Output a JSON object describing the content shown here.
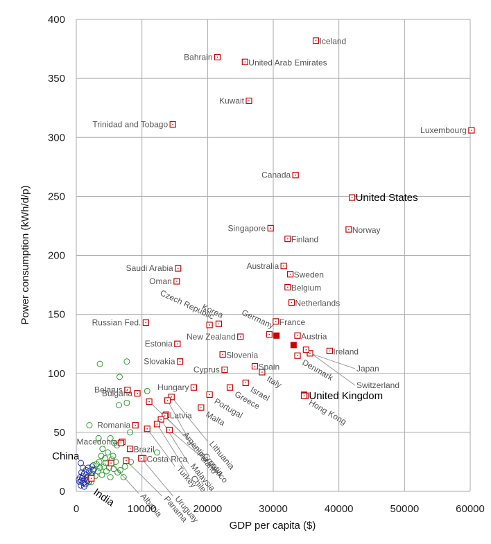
{
  "chart_data": {
    "type": "scatter",
    "xlabel": "GDP per capita ($)",
    "ylabel": "Power consumption (kWh/d/p)",
    "xlim": [
      0,
      60000
    ],
    "ylim": [
      0,
      400
    ],
    "xticks": [
      0,
      10000,
      20000,
      30000,
      40000,
      50000,
      60000
    ],
    "yticks": [
      0,
      50,
      100,
      150,
      200,
      250,
      300,
      350,
      400
    ],
    "grid": true,
    "colors": {
      "highlight": "#cc0000",
      "green": "#2a9a2a",
      "blue": "#2233aa",
      "gray_label": "#555555",
      "grid": "#aaaaaa"
    },
    "labeled_points": [
      {
        "name": "Iceland",
        "x": 36500,
        "y": 382,
        "label_side": "right"
      },
      {
        "name": "Bahrain",
        "x": 21500,
        "y": 368,
        "label_side": "left"
      },
      {
        "name": "United Arab Emirates",
        "x": 25700,
        "y": 364,
        "label_side": "right"
      },
      {
        "name": "Kuwait",
        "x": 26300,
        "y": 331,
        "label_side": "left"
      },
      {
        "name": "Trinidad and Tobago",
        "x": 14700,
        "y": 311,
        "label_side": "left"
      },
      {
        "name": "Luxembourg",
        "x": 60200,
        "y": 306,
        "label_side": "left"
      },
      {
        "name": "Canada",
        "x": 33400,
        "y": 268,
        "label_side": "left"
      },
      {
        "name": "United States",
        "x": 42000,
        "y": 249,
        "label_side": "right",
        "emphasis": true
      },
      {
        "name": "Singapore",
        "x": 29600,
        "y": 223,
        "label_side": "left"
      },
      {
        "name": "Norway",
        "x": 41500,
        "y": 222,
        "label_side": "right"
      },
      {
        "name": "Finland",
        "x": 32200,
        "y": 214,
        "label_side": "right"
      },
      {
        "name": "Saudi Arabia",
        "x": 15500,
        "y": 189,
        "label_side": "left"
      },
      {
        "name": "Australia",
        "x": 31600,
        "y": 191,
        "label_side": "left"
      },
      {
        "name": "Sweden",
        "x": 32600,
        "y": 184,
        "label_side": "right"
      },
      {
        "name": "Oman",
        "x": 15300,
        "y": 178,
        "label_side": "left"
      },
      {
        "name": "Belgium",
        "x": 32200,
        "y": 173,
        "label_side": "right"
      },
      {
        "name": "Netherlands",
        "x": 32800,
        "y": 160,
        "label_side": "right"
      },
      {
        "name": "Russian Fed.",
        "x": 10600,
        "y": 143,
        "label_side": "left"
      },
      {
        "name": "France",
        "x": 30400,
        "y": 144,
        "label_side": "right"
      },
      {
        "name": "Austria",
        "x": 33700,
        "y": 132,
        "label_side": "right"
      },
      {
        "name": "New Zealand",
        "x": 25000,
        "y": 131,
        "label_side": "left"
      },
      {
        "name": "Estonia",
        "x": 15400,
        "y": 125,
        "label_side": "left"
      },
      {
        "name": "Ireland",
        "x": 38600,
        "y": 119,
        "label_side": "right"
      },
      {
        "name": "Slovenia",
        "x": 22300,
        "y": 116,
        "label_side": "right"
      },
      {
        "name": "Slovakia",
        "x": 15800,
        "y": 110,
        "label_side": "left"
      },
      {
        "name": "Spain",
        "x": 27200,
        "y": 106,
        "label_side": "right"
      },
      {
        "name": "Cyprus",
        "x": 22600,
        "y": 103,
        "label_side": "left"
      },
      {
        "name": "Belarus",
        "x": 7800,
        "y": 86,
        "label_side": "left"
      },
      {
        "name": "Hungary",
        "x": 17900,
        "y": 88,
        "label_side": "left"
      },
      {
        "name": "Bulgaria",
        "x": 9300,
        "y": 83,
        "label_side": "left"
      },
      {
        "name": "Latvia",
        "x": 13700,
        "y": 65,
        "label_side": "right"
      },
      {
        "name": "Romania",
        "x": 9000,
        "y": 56,
        "label_side": "left"
      },
      {
        "name": "Macedonia",
        "x": 7000,
        "y": 42,
        "label_side": "left"
      },
      {
        "name": "Brazil",
        "x": 8200,
        "y": 36,
        "label_side": "right"
      },
      {
        "name": "Costa Rica",
        "x": 10200,
        "y": 28,
        "label_side": "right"
      },
      {
        "name": "China",
        "x": 6800,
        "y": 41,
        "label_side": "left",
        "emphasis": true
      },
      {
        "name": "India",
        "x": 2300,
        "y": 11,
        "label_side": "below",
        "emphasis": true
      },
      {
        "name": "United Kingdom",
        "x": 34900,
        "y": 81,
        "label_side": "right",
        "emphasis": true
      }
    ],
    "rotated_labels": [
      {
        "name": "Czech Republic",
        "x": 20300,
        "y": 141
      },
      {
        "name": "Korea",
        "x": 21700,
        "y": 142
      },
      {
        "name": "Germany",
        "x": 29400,
        "y": 133
      },
      {
        "name": "Denmark",
        "x": 33700,
        "y": 115
      },
      {
        "name": "Italy",
        "x": 28300,
        "y": 101
      },
      {
        "name": "Israel",
        "x": 25800,
        "y": 92
      },
      {
        "name": "Greece",
        "x": 23400,
        "y": 88
      },
      {
        "name": "Portugal",
        "x": 20300,
        "y": 82
      },
      {
        "name": "Malta",
        "x": 19000,
        "y": 71
      },
      {
        "name": "Hong Kong",
        "x": 34700,
        "y": 81
      }
    ],
    "pointer_labels": [
      {
        "name": "Japan",
        "x": 35600,
        "y": 117
      },
      {
        "name": "Switzerland",
        "x": 35000,
        "y": 120
      },
      {
        "name": "Lithuania",
        "x": 14500,
        "y": 80
      },
      {
        "name": "Poland",
        "x": 13900,
        "y": 77
      },
      {
        "name": "Argentina",
        "x": 11100,
        "y": 76
      },
      {
        "name": "Croatia",
        "x": 13500,
        "y": 64
      },
      {
        "name": "Malaysia",
        "x": 12900,
        "y": 61
      },
      {
        "name": "Chile",
        "x": 12300,
        "y": 57
      },
      {
        "name": "Mexico",
        "x": 14200,
        "y": 52
      },
      {
        "name": "Turkey",
        "x": 10800,
        "y": 53
      },
      {
        "name": "Uruguay",
        "x": 9900,
        "y": 28
      },
      {
        "name": "Panama",
        "x": 7600,
        "y": 26
      },
      {
        "name": "Albania",
        "x": 5300,
        "y": 24
      }
    ],
    "extra_red_points": [
      {
        "x": 30500,
        "y": 132
      },
      {
        "x": 33100,
        "y": 124
      },
      {
        "x": 34700,
        "y": 82
      }
    ],
    "green_points": [
      {
        "x": 3600,
        "y": 108
      },
      {
        "x": 7700,
        "y": 110
      },
      {
        "x": 6600,
        "y": 97
      },
      {
        "x": 10800,
        "y": 85
      },
      {
        "x": 6500,
        "y": 73
      },
      {
        "x": 7700,
        "y": 75
      },
      {
        "x": 2000,
        "y": 56
      },
      {
        "x": 8200,
        "y": 50
      },
      {
        "x": 3400,
        "y": 45
      },
      {
        "x": 5200,
        "y": 45
      },
      {
        "x": 12300,
        "y": 33
      },
      {
        "x": 5800,
        "y": 41
      },
      {
        "x": 6200,
        "y": 39
      },
      {
        "x": 4000,
        "y": 36
      },
      {
        "x": 4800,
        "y": 33
      },
      {
        "x": 3800,
        "y": 30
      },
      {
        "x": 4400,
        "y": 28
      },
      {
        "x": 5400,
        "y": 27
      },
      {
        "x": 6000,
        "y": 25
      },
      {
        "x": 3500,
        "y": 25
      },
      {
        "x": 3100,
        "y": 23
      },
      {
        "x": 2600,
        "y": 22
      },
      {
        "x": 4200,
        "y": 21
      },
      {
        "x": 5000,
        "y": 20
      },
      {
        "x": 5700,
        "y": 19
      },
      {
        "x": 6700,
        "y": 18
      },
      {
        "x": 3300,
        "y": 17
      },
      {
        "x": 4600,
        "y": 17
      },
      {
        "x": 2400,
        "y": 15
      },
      {
        "x": 3900,
        "y": 14
      },
      {
        "x": 2900,
        "y": 13
      },
      {
        "x": 2100,
        "y": 12
      },
      {
        "x": 5200,
        "y": 12
      },
      {
        "x": 7400,
        "y": 21
      },
      {
        "x": 6300,
        "y": 16
      },
      {
        "x": 2700,
        "y": 19
      },
      {
        "x": 3600,
        "y": 20
      },
      {
        "x": 4500,
        "y": 24
      },
      {
        "x": 1800,
        "y": 10
      },
      {
        "x": 2300,
        "y": 8
      },
      {
        "x": 7200,
        "y": 12
      },
      {
        "x": 8300,
        "y": 25
      },
      {
        "x": 5600,
        "y": 30
      }
    ],
    "blue_points": [
      {
        "x": 700,
        "y": 24
      },
      {
        "x": 1000,
        "y": 20
      },
      {
        "x": 1500,
        "y": 18
      },
      {
        "x": 800,
        "y": 16
      },
      {
        "x": 1200,
        "y": 15
      },
      {
        "x": 2000,
        "y": 17
      },
      {
        "x": 600,
        "y": 12
      },
      {
        "x": 900,
        "y": 11
      },
      {
        "x": 1300,
        "y": 10
      },
      {
        "x": 1700,
        "y": 9
      },
      {
        "x": 500,
        "y": 8
      },
      {
        "x": 1100,
        "y": 7
      },
      {
        "x": 1600,
        "y": 12
      },
      {
        "x": 2200,
        "y": 14
      },
      {
        "x": 1400,
        "y": 6
      },
      {
        "x": 1900,
        "y": 8
      },
      {
        "x": 400,
        "y": 10
      },
      {
        "x": 800,
        "y": 9
      },
      {
        "x": 1000,
        "y": 13
      },
      {
        "x": 1800,
        "y": 20
      },
      {
        "x": 2400,
        "y": 21
      },
      {
        "x": 2600,
        "y": 18
      },
      {
        "x": 700,
        "y": 5
      },
      {
        "x": 1200,
        "y": 4
      }
    ]
  }
}
